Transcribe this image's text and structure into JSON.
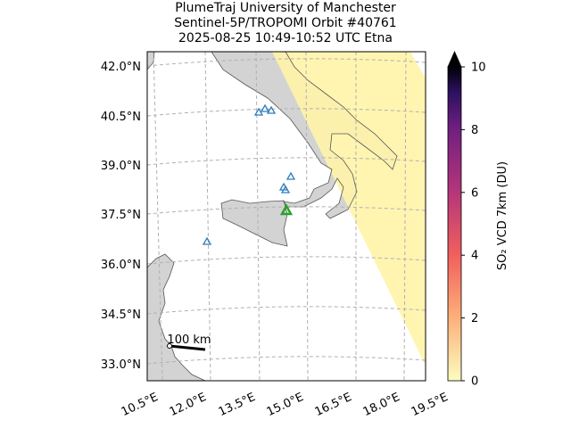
{
  "title_lines": [
    "PlumeTraj    University of Manchester",
    "Sentinel-5P/TROPOMI Orbit #40761",
    "2025-08-25   10:49-10:52 UTC   Etna"
  ],
  "map": {
    "lat_labels": [
      "42.0°N",
      "40.5°N",
      "39.0°N",
      "37.5°N",
      "36.0°N",
      "34.5°N",
      "33.0°N"
    ],
    "lon_labels": [
      "10.5°E",
      "12.0°E",
      "13.5°E",
      "15.0°E",
      "16.5°E",
      "18.0°E",
      "19.5°E"
    ],
    "scale_bar": "100 km"
  },
  "colorbar": {
    "label": "SO₂ VCD 7km (DU)",
    "clim": [
      0,
      10
    ],
    "ticks": [
      0,
      2,
      4,
      6,
      8,
      10
    ]
  }
}
